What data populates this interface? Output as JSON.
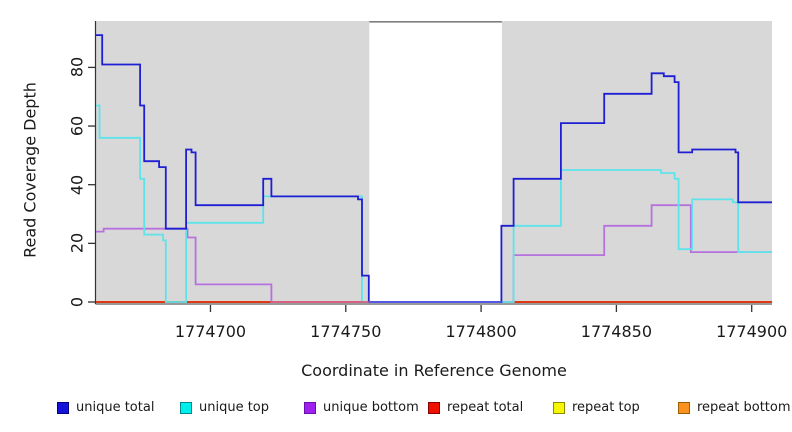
{
  "chart_data": {
    "type": "line",
    "subtype": "step-coverage",
    "title": "",
    "xlabel": "Coordinate in Reference Genome",
    "ylabel": "Read Coverage Depth",
    "xlim": [
      1774657.7,
      1774907.5
    ],
    "ylim": [
      0,
      96
    ],
    "x_ticks": [
      1774700,
      1774750,
      1774800,
      1774850,
      1774900
    ],
    "y_ticks": [
      0,
      20,
      40,
      60,
      80
    ],
    "grid": "off",
    "legend_position": "bottom",
    "plot_bg": "#d8d8d8",
    "axis_color": "#333333",
    "gap_region": {
      "from": 1774758.7,
      "to": 1774807.7,
      "color": "#ffffff",
      "top_border": "#7f7f7f"
    },
    "series": [
      {
        "name": "unique total",
        "color": "#1e1ed2",
        "legend_fill": "#1414d9",
        "legend_border": "#000080",
        "steps": [
          [
            1774657.7,
            91
          ],
          [
            1774660,
            81
          ],
          [
            1774674,
            67
          ],
          [
            1774675.5,
            48
          ],
          [
            1774681,
            46
          ],
          [
            1774683.5,
            25
          ],
          [
            1774691,
            52
          ],
          [
            1774693,
            51
          ],
          [
            1774694.5,
            33
          ],
          [
            1774719.5,
            42
          ],
          [
            1774722.5,
            36
          ],
          [
            1774754.5,
            35
          ],
          [
            1774756,
            9
          ],
          [
            1774758.5,
            0
          ],
          [
            1774807.5,
            26
          ],
          [
            1774812,
            42
          ],
          [
            1774829.5,
            61
          ],
          [
            1774845.5,
            71
          ],
          [
            1774863,
            78
          ],
          [
            1774867.5,
            77
          ],
          [
            1774871.5,
            75
          ],
          [
            1774873,
            51
          ],
          [
            1774878,
            52
          ],
          [
            1774894,
            51
          ],
          [
            1774895,
            34
          ]
        ]
      },
      {
        "name": "unique top",
        "color": "#5ee3ea",
        "legend_fill": "#00eeee",
        "legend_border": "#008b8b",
        "steps": [
          [
            1774657.7,
            67
          ],
          [
            1774659,
            56
          ],
          [
            1774674,
            42
          ],
          [
            1774675.5,
            23
          ],
          [
            1774682.5,
            21
          ],
          [
            1774683.5,
            0
          ],
          [
            1774691,
            27
          ],
          [
            1774719.5,
            36
          ],
          [
            1774756,
            0
          ],
          [
            1774812,
            26
          ],
          [
            1774829.5,
            45
          ],
          [
            1774866.5,
            44
          ],
          [
            1774871.5,
            42
          ],
          [
            1774873,
            18
          ],
          [
            1774878,
            35
          ],
          [
            1774893,
            34
          ],
          [
            1774895,
            17
          ]
        ]
      },
      {
        "name": "unique bottom",
        "color": "#b671de",
        "legend_fill": "#a020f0",
        "legend_border": "#6a0dad",
        "steps": [
          [
            1774657.7,
            24
          ],
          [
            1774660.5,
            25
          ],
          [
            1774691.5,
            22
          ],
          [
            1774694.5,
            6
          ],
          [
            1774722.5,
            0
          ],
          [
            1774812,
            16
          ],
          [
            1774845.5,
            26
          ],
          [
            1774863,
            33
          ],
          [
            1774877.5,
            17
          ]
        ]
      },
      {
        "name": "repeat total",
        "color": "#de2110",
        "legend_fill": "#ee1100",
        "legend_border": "#8b0000",
        "steps": [
          [
            1774657.7,
            0
          ]
        ]
      },
      {
        "name": "repeat top",
        "color": "#f0f000",
        "legend_fill": "#f7f700",
        "legend_border": "#8b8b00",
        "steps": [
          [
            1774657.7,
            0
          ]
        ]
      },
      {
        "name": "repeat bottom",
        "color": "#ff8c05",
        "legend_fill": "#f79420",
        "legend_border": "#a05a00",
        "steps": [
          [
            1774657.7,
            0
          ]
        ]
      }
    ],
    "bottom_overlays": [
      {
        "from": 1774722.5,
        "to": 1774758.5,
        "color": "#d8607a"
      },
      {
        "from": 1774758.5,
        "to": 1774807.5,
        "color": "#5b5be8"
      }
    ]
  }
}
